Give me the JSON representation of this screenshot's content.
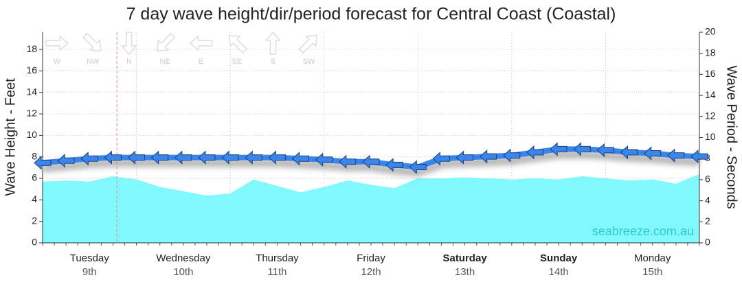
{
  "chart_data": {
    "type": "wave-forecast",
    "title": "7 day wave height/dir/period forecast for Central Coast (Coastal)",
    "y_label": "Wave Height - Feet",
    "y2_label": "Wave Period - Seconds",
    "watermark": "seabreeze.com.au",
    "compass": [
      "W",
      "NW",
      "N",
      "NE",
      "E",
      "SE",
      "S",
      "SW"
    ],
    "categories": [
      "Tuesday",
      "Wednesday",
      "Thursday",
      "Friday",
      "Saturday",
      "Sunday",
      "Monday"
    ],
    "dates": [
      "9th",
      "10th",
      "11th",
      "12th",
      "13th",
      "14th",
      "15th"
    ],
    "bold": [
      false,
      false,
      false,
      false,
      true,
      true,
      false
    ],
    "x": [
      0,
      6,
      12,
      18,
      24,
      30,
      36,
      42,
      48,
      54,
      60,
      66,
      72,
      78,
      84,
      90,
      96,
      102,
      108,
      114,
      120,
      126,
      132,
      138,
      144,
      150,
      156,
      162,
      168
    ],
    "xlim": [
      0,
      168
    ],
    "now": 19,
    "series": [
      {
        "name": "Wave Height",
        "color": "#80f8fc",
        "values": [
          5.7,
          5.8,
          5.7,
          6.2,
          5.9,
          5.2,
          4.8,
          4.4,
          4.6,
          5.9,
          5.3,
          4.7,
          5.2,
          5.8,
          5.4,
          5.1,
          6.0,
          6.0,
          6.1,
          6.0,
          5.9,
          6.0,
          5.9,
          6.2,
          6.0,
          5.8,
          5.9,
          5.5,
          6.4
        ]
      },
      {
        "name": "Wave Period",
        "color": "#3a86e8",
        "axis": "y2",
        "values": [
          7.6,
          7.8,
          8.0,
          8.1,
          8.1,
          8.1,
          8.1,
          8.1,
          8.1,
          8.1,
          8.1,
          8.0,
          7.9,
          7.7,
          7.7,
          7.4,
          7.2,
          8.0,
          8.1,
          8.2,
          8.3,
          8.6,
          8.9,
          8.9,
          8.8,
          8.6,
          8.5,
          8.3,
          8.2
        ]
      }
    ],
    "ylim": [
      0,
      19.6
    ],
    "yticks": [
      0,
      2,
      4,
      6,
      8,
      10,
      12,
      14,
      16,
      18
    ],
    "y2lim": [
      0,
      20
    ],
    "y2ticks": [
      0,
      2,
      4,
      6,
      8,
      10,
      12,
      14,
      16,
      18,
      20
    ],
    "grid": true
  }
}
